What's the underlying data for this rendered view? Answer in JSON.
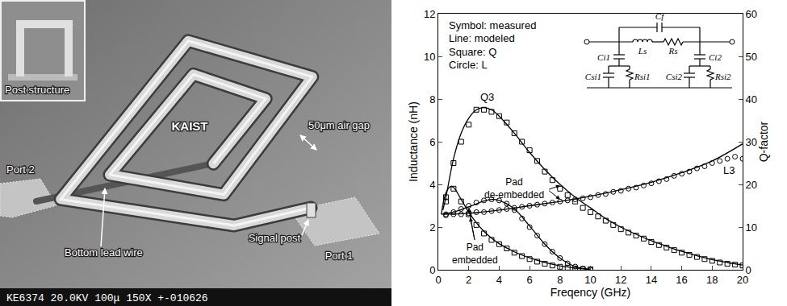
{
  "photo": {
    "inset": "Post structure",
    "logo": "KAIST",
    "labels": [
      "50μm air gap",
      "Port 2",
      "Signal post",
      "Port 1",
      "Bottom lead wire"
    ],
    "footer": "KE6374 20.0KV 100μ 150X +-010626"
  },
  "chart_data": {
    "type": "line",
    "x_label": "Freqency (GHz)",
    "y_label": "Inductance (nH)",
    "y2_label": "Q-factor",
    "xlim": [
      0,
      20
    ],
    "xticks": [
      0,
      2,
      4,
      6,
      8,
      10,
      12,
      14,
      16,
      18,
      20
    ],
    "ylim": [
      0,
      12
    ],
    "yticks": [
      0,
      2,
      4,
      6,
      8,
      10,
      12
    ],
    "y2lim": [
      0,
      60
    ],
    "y2ticks": [
      0,
      10,
      20,
      30,
      40,
      50,
      60
    ],
    "grid": false,
    "notes": [
      "Symbol: measured",
      "Line: modeled",
      "Square: Q",
      "Circle: L"
    ],
    "annotations": [
      "Q3",
      "L3",
      "Pad de-embedded",
      "Pad embedded"
    ],
    "circuit_labels": [
      "Cf",
      "Ls",
      "Rs",
      "Ci1",
      "Ci2",
      "Csi1",
      "Rsi1",
      "Csi2",
      "Rsi2"
    ],
    "series": [
      {
        "type": "scatter",
        "marker": "square",
        "color": "#000000",
        "axis": "y2",
        "x": [
          0.5,
          1,
          1.5,
          2,
          2.5,
          3,
          3.5,
          4,
          4.5,
          5,
          5.5,
          6,
          6.5,
          7,
          7.5,
          8,
          8.5,
          9,
          9.5,
          10,
          10.5,
          11,
          11.5,
          12,
          12.5,
          13,
          13.5,
          14,
          14.5,
          15,
          15.5,
          16,
          16.5,
          17,
          17.5,
          18,
          18.5,
          19,
          19.5,
          20
        ],
        "values": [
          16,
          25,
          30,
          34,
          37.5,
          37.5,
          37,
          36,
          34.5,
          32,
          30,
          28,
          25.5,
          23,
          21,
          19,
          17.5,
          16,
          14.5,
          13.5,
          12.5,
          11.5,
          10.5,
          9.5,
          8.7,
          8,
          7.3,
          6.5,
          5.8,
          5.2,
          4.6,
          4,
          3.5,
          3,
          2.5,
          2.1,
          1.7,
          1.4,
          1.2,
          1.0
        ]
      },
      {
        "type": "line",
        "line_style": "solid",
        "color": "#000000",
        "axis": "y2",
        "x": [
          0.3,
          0.5,
          1,
          1.5,
          2,
          2.5,
          3,
          3.5,
          4,
          5,
          6,
          7,
          8,
          9,
          10,
          11,
          12,
          13,
          14,
          15,
          16,
          17,
          18,
          19,
          20
        ],
        "values": [
          14,
          17,
          26,
          32,
          35.5,
          37.5,
          38,
          37.5,
          36,
          32,
          27.5,
          23.5,
          20,
          17,
          14.5,
          12,
          10,
          8.3,
          6.8,
          5.5,
          4.3,
          3.3,
          2.4,
          1.7,
          1.1
        ]
      },
      {
        "type": "scatter",
        "marker": "circle",
        "color": "#000000",
        "axis": "y",
        "x": [
          0.5,
          1,
          1.5,
          2,
          2.5,
          3,
          3.5,
          4,
          4.5,
          5,
          5.5,
          6,
          6.5,
          7,
          7.5,
          8,
          8.5,
          9,
          9.5,
          10,
          10.5,
          11,
          11.5,
          12,
          12.5,
          13,
          13.5,
          14,
          14.5,
          15,
          15.5,
          16,
          16.5,
          17,
          17.5,
          18,
          18.5,
          19,
          19.5,
          20
        ],
        "values": [
          2.55,
          2.6,
          2.6,
          2.65,
          2.7,
          2.7,
          2.75,
          2.8,
          2.85,
          2.9,
          2.95,
          3.0,
          3.05,
          3.1,
          3.15,
          3.2,
          3.25,
          3.3,
          3.35,
          3.4,
          3.5,
          3.55,
          3.65,
          3.7,
          3.8,
          3.85,
          3.95,
          4.05,
          4.15,
          4.25,
          4.4,
          4.5,
          4.6,
          4.75,
          4.85,
          5.0,
          5.1,
          5.2,
          5.3,
          5.2
        ]
      },
      {
        "type": "line",
        "line_style": "solid",
        "color": "#000000",
        "axis": "y",
        "x": [
          0.3,
          2,
          4,
          6,
          8,
          10,
          12,
          14,
          16,
          18,
          20
        ],
        "values": [
          2.6,
          2.65,
          2.8,
          3.0,
          3.2,
          3.45,
          3.75,
          4.1,
          4.55,
          5.1,
          5.9
        ]
      },
      {
        "type": "scatter",
        "marker": "square",
        "color": "#000000",
        "axis": "y2",
        "x": [
          0.5,
          1,
          1.5,
          2,
          2.5,
          3,
          3.5,
          4,
          4.5,
          5,
          5.5,
          6,
          6.5,
          7,
          7.5,
          8,
          8.5,
          9,
          9.5,
          10
        ],
        "values": [
          17,
          19,
          16,
          13,
          10.5,
          8.5,
          7,
          6,
          5,
          4,
          3.2,
          2.5,
          1.9,
          1.4,
          1.0,
          0.7,
          0.5,
          0.3,
          0.2,
          0.1
        ]
      },
      {
        "type": "line",
        "line_style": "solid",
        "color": "#000000",
        "axis": "y2",
        "x": [
          0.2,
          0.5,
          0.8,
          1,
          1.5,
          2,
          2.5,
          3,
          3.5,
          4,
          5,
          6,
          7,
          8,
          9,
          10
        ],
        "values": [
          13,
          18,
          19.5,
          19.3,
          16.5,
          13.5,
          11,
          9,
          7.4,
          6.1,
          4.2,
          2.8,
          1.7,
          0.9,
          0.4,
          0.1
        ]
      },
      {
        "type": "scatter",
        "marker": "circle",
        "color": "#000000",
        "axis": "y",
        "x": [
          0.5,
          1,
          1.5,
          2,
          2.5,
          3,
          3.5,
          4,
          4.5,
          5,
          5.5,
          6,
          6.5,
          7,
          7.5,
          8,
          8.5,
          9,
          9.5,
          10
        ],
        "values": [
          2.6,
          2.7,
          2.85,
          3.0,
          3.15,
          3.25,
          3.3,
          3.25,
          3.1,
          2.8,
          2.4,
          2.0,
          1.6,
          1.2,
          0.85,
          0.55,
          0.3,
          0.15,
          0.05,
          0.0
        ]
      },
      {
        "type": "line",
        "line_style": "solid",
        "color": "#000000",
        "axis": "y",
        "x": [
          0.2,
          1,
          2,
          3,
          3.5,
          4,
          5,
          6,
          7,
          8,
          9,
          10
        ],
        "values": [
          2.6,
          2.7,
          2.95,
          3.22,
          3.3,
          3.25,
          2.85,
          2.05,
          1.2,
          0.55,
          0.15,
          0.02
        ]
      }
    ]
  }
}
